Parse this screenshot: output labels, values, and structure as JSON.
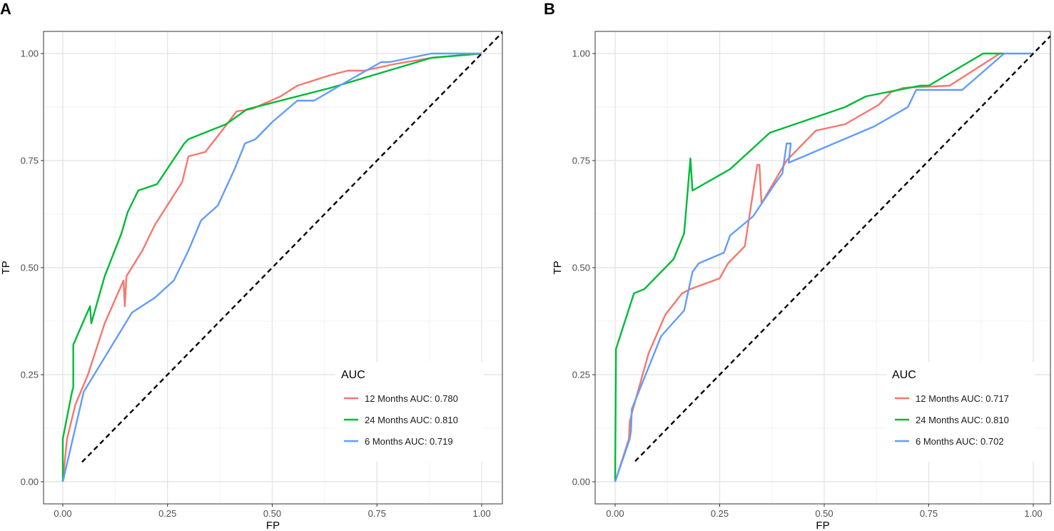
{
  "chart_data": [
    {
      "panel_label": "A",
      "type": "line",
      "title": "",
      "xlabel": "FP",
      "ylabel": "TP",
      "xlim": [
        0,
        1
      ],
      "ylim": [
        0,
        1
      ],
      "x_ticks": [
        "0.00",
        "0.25",
        "0.50",
        "0.75",
        "1.00"
      ],
      "y_ticks": [
        "0.00",
        "0.25",
        "0.50",
        "0.75",
        "1.00"
      ],
      "grid": true,
      "legend_title": "AUC",
      "legend_position": "bottom-right",
      "reference_line": {
        "x": [
          0,
          1
        ],
        "y": [
          0,
          1
        ],
        "style": "dashed",
        "color": "#000000"
      },
      "series": [
        {
          "name": "12 Months AUC: 0.780",
          "color": "#F8766D",
          "x": [
            0.0,
            0.01,
            0.03,
            0.06,
            0.1,
            0.145,
            0.148,
            0.152,
            0.19,
            0.22,
            0.285,
            0.3,
            0.34,
            0.38,
            0.415,
            0.45,
            0.52,
            0.56,
            0.64,
            0.68,
            0.72,
            0.79,
            0.88,
            1.0
          ],
          "y": [
            0.0,
            0.1,
            0.18,
            0.25,
            0.37,
            0.47,
            0.41,
            0.48,
            0.54,
            0.6,
            0.7,
            0.76,
            0.77,
            0.82,
            0.865,
            0.87,
            0.9,
            0.925,
            0.95,
            0.96,
            0.96,
            0.975,
            0.99,
            1.0
          ]
        },
        {
          "name": "24 Months AUC: 0.810",
          "color": "#00BA38",
          "x": [
            0.0,
            0.0,
            0.022,
            0.025,
            0.025,
            0.065,
            0.068,
            0.1,
            0.14,
            0.155,
            0.18,
            0.225,
            0.29,
            0.3,
            0.39,
            0.44,
            0.64,
            0.88,
            1.0
          ],
          "y": [
            0.0,
            0.1,
            0.21,
            0.22,
            0.32,
            0.41,
            0.37,
            0.48,
            0.58,
            0.63,
            0.68,
            0.695,
            0.79,
            0.8,
            0.835,
            0.87,
            0.92,
            0.99,
            1.0
          ]
        },
        {
          "name": "6 Months AUC: 0.719",
          "color": "#619CFF",
          "x": [
            0.0,
            0.05,
            0.165,
            0.22,
            0.265,
            0.3,
            0.33,
            0.37,
            0.41,
            0.435,
            0.46,
            0.5,
            0.56,
            0.6,
            0.67,
            0.76,
            0.78,
            0.88,
            1.0
          ],
          "y": [
            0.0,
            0.21,
            0.395,
            0.43,
            0.47,
            0.54,
            0.61,
            0.645,
            0.73,
            0.79,
            0.8,
            0.84,
            0.89,
            0.89,
            0.93,
            0.98,
            0.98,
            1.0,
            1.0
          ]
        }
      ]
    },
    {
      "panel_label": "B",
      "type": "line",
      "title": "",
      "xlabel": "FP",
      "ylabel": "TP",
      "xlim": [
        0,
        1
      ],
      "ylim": [
        0,
        1
      ],
      "x_ticks": [
        "0.00",
        "0.25",
        "0.50",
        "0.75",
        "1.00"
      ],
      "y_ticks": [
        "0.00",
        "0.25",
        "0.50",
        "0.75",
        "1.00"
      ],
      "grid": true,
      "legend_title": "AUC",
      "legend_position": "bottom-right",
      "reference_line": {
        "x": [
          0,
          1
        ],
        "y": [
          0,
          1
        ],
        "style": "dashed",
        "color": "#000000"
      },
      "series": [
        {
          "name": "12 Months AUC: 0.717",
          "color": "#F8766D",
          "x": [
            0.0,
            0.033,
            0.035,
            0.04,
            0.08,
            0.12,
            0.16,
            0.18,
            0.25,
            0.27,
            0.31,
            0.34,
            0.345,
            0.35,
            0.41,
            0.48,
            0.55,
            0.63,
            0.66,
            0.69,
            0.8,
            0.92
          ],
          "y": [
            0.0,
            0.1,
            0.14,
            0.16,
            0.3,
            0.39,
            0.44,
            0.45,
            0.475,
            0.51,
            0.55,
            0.74,
            0.74,
            0.65,
            0.75,
            0.82,
            0.835,
            0.88,
            0.91,
            0.92,
            0.925,
            1.0
          ]
        },
        {
          "name": "24 Months AUC: 0.810",
          "color": "#00BA38",
          "x": [
            0.0,
            0.0,
            0.002,
            0.045,
            0.07,
            0.14,
            0.165,
            0.18,
            0.185,
            0.275,
            0.37,
            0.55,
            0.6,
            0.73,
            0.75,
            0.88,
            0.93
          ],
          "y": [
            0.0,
            0.0,
            0.31,
            0.44,
            0.45,
            0.52,
            0.58,
            0.755,
            0.68,
            0.73,
            0.815,
            0.875,
            0.9,
            0.925,
            0.925,
            1.0,
            1.0
          ]
        },
        {
          "name": "6 Months AUC: 0.702",
          "color": "#619CFF",
          "x": [
            0.0,
            0.035,
            0.038,
            0.04,
            0.11,
            0.165,
            0.185,
            0.2,
            0.26,
            0.275,
            0.33,
            0.385,
            0.4,
            0.41,
            0.42,
            0.415,
            0.62,
            0.7,
            0.72,
            0.83,
            0.93,
            1.0
          ],
          "y": [
            0.0,
            0.1,
            0.12,
            0.17,
            0.34,
            0.4,
            0.49,
            0.51,
            0.535,
            0.575,
            0.62,
            0.7,
            0.72,
            0.79,
            0.79,
            0.745,
            0.83,
            0.875,
            0.915,
            0.915,
            1.0,
            1.0
          ]
        }
      ]
    }
  ]
}
